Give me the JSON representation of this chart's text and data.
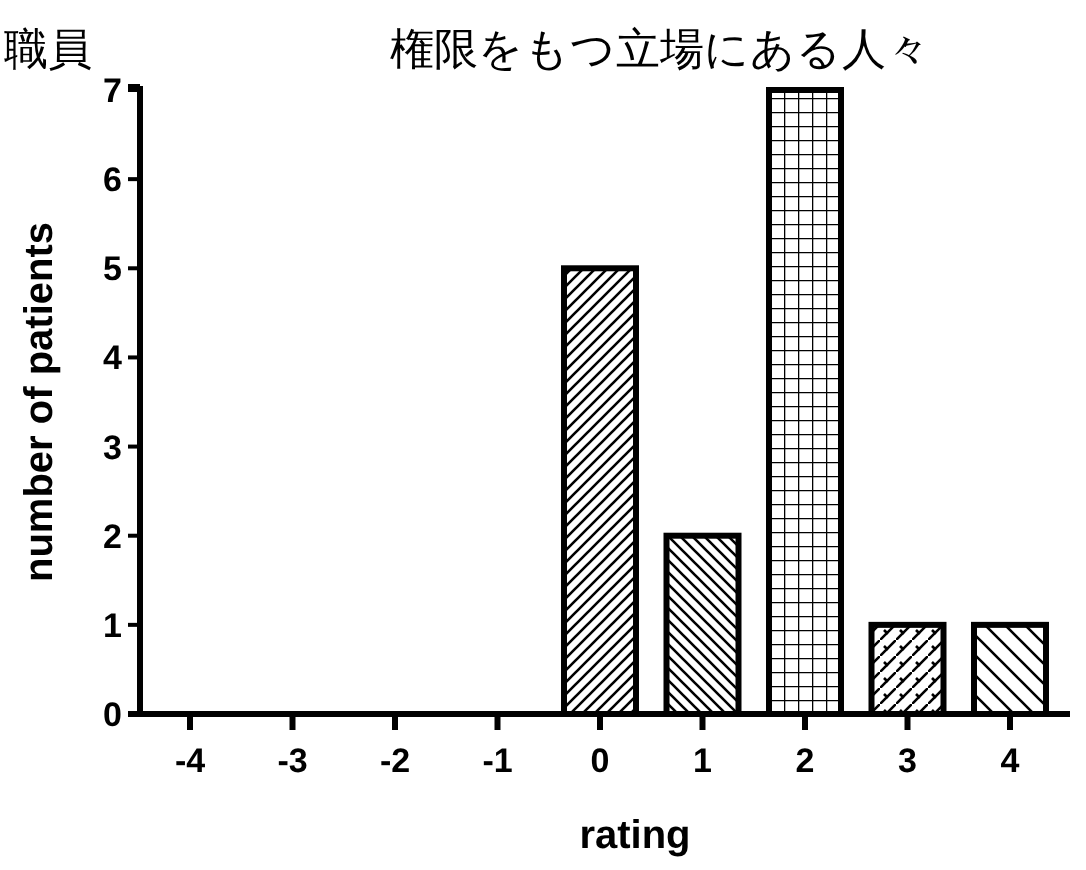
{
  "chart_data": {
    "type": "bar",
    "title": "権限をもつ立場にある人々",
    "xlabel": "rating",
    "ylabel": "number of patients",
    "annotations": [
      "職員"
    ],
    "categories": [
      "-4",
      "-3",
      "-2",
      "-1",
      "0",
      "1",
      "2",
      "3",
      "4"
    ],
    "values": [
      0,
      0,
      0,
      0,
      5,
      2,
      7,
      1,
      1
    ],
    "ylim": [
      0,
      7
    ],
    "yticks": [
      0,
      1,
      2,
      3,
      4,
      5,
      6,
      7
    ]
  }
}
